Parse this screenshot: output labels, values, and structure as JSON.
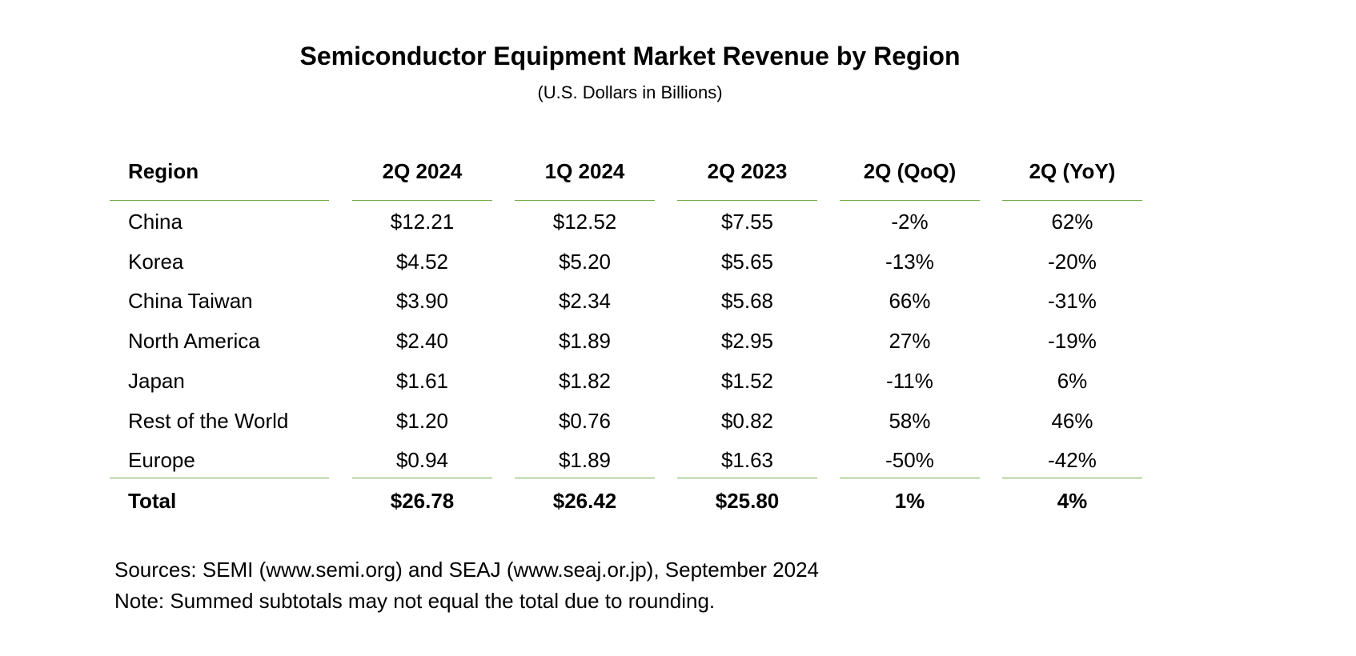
{
  "title": "Semiconductor Equipment Market Revenue by Region",
  "subtitle": "(U.S. Dollars in Billions)",
  "table": {
    "headers": [
      "Region",
      "2Q 2024",
      "1Q 2024",
      "2Q 2023",
      "2Q (QoQ)",
      "2Q (YoY)"
    ],
    "rows": [
      [
        "China",
        "$12.21",
        "$12.52",
        "$7.55",
        "-2%",
        "62%"
      ],
      [
        "Korea",
        "$4.52",
        "$5.20",
        "$5.65",
        "-13%",
        "-20%"
      ],
      [
        "China Taiwan",
        "$3.90",
        "$2.34",
        "$5.68",
        "66%",
        "-31%"
      ],
      [
        "North America",
        "$2.40",
        "$1.89",
        "$2.95",
        "27%",
        "-19%"
      ],
      [
        "Japan",
        "$1.61",
        "$1.82",
        "$1.52",
        "-11%",
        "6%"
      ],
      [
        "Rest of the World",
        "$1.20",
        "$0.76",
        "$0.82",
        "58%",
        "46%"
      ],
      [
        "Europe",
        "$0.94",
        "$1.89",
        "$1.63",
        "-50%",
        "-42%"
      ]
    ],
    "total": [
      "Total",
      "$26.78",
      "$26.42",
      "$25.80",
      "1%",
      "4%"
    ]
  },
  "footnotes": {
    "sources": "Sources: SEMI (www.semi.org) and SEAJ (www.seaj.or.jp), September 2024",
    "note": "Note: Summed subtotals may not equal the total due to rounding."
  },
  "colors": {
    "rule": "#70ad47",
    "text": "#000000",
    "background": "#ffffff"
  }
}
